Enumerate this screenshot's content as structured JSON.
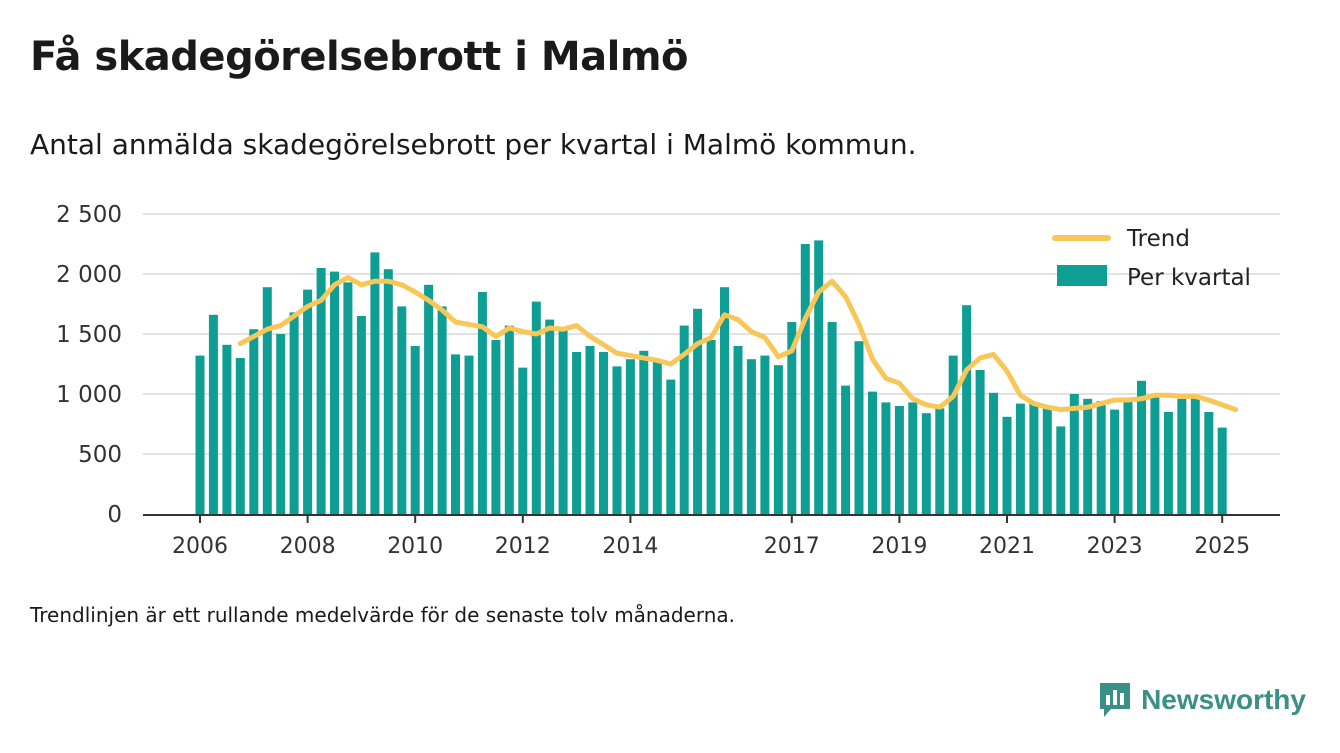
{
  "title": "Få skadegörelsebrott i Malmö",
  "subtitle": "Antal anmälda skadegörelsebrott per kvartal i Malmö kommun.",
  "note": "Trendlinjen är ett rullande medelvärde för de senaste tolv månaderna.",
  "brand": {
    "name": "Newsworthy",
    "icon": "newsworthy-logo-icon",
    "color": "#3a8f86"
  },
  "chart_data": {
    "type": "bar",
    "x_start_year": 2006,
    "quarters_per_year": 4,
    "ylim": [
      0,
      2500
    ],
    "y_ticks": [
      0,
      500,
      1000,
      1500,
      2000,
      2500
    ],
    "y_tick_labels": [
      "0",
      "500",
      "1 000",
      "1 500",
      "2 000",
      "2 500"
    ],
    "x_ticks": [
      2006,
      2008,
      2010,
      2012,
      2014,
      2017,
      2019,
      2021,
      2023,
      2025
    ],
    "x_tick_labels": [
      "2006",
      "2008",
      "2010",
      "2012",
      "2014",
      "2017",
      "2019",
      "2021",
      "2023",
      "2025"
    ],
    "grid": true,
    "legend_position": "top-right",
    "colors": {
      "bars": "#0f9e93",
      "trend": "#f8c758",
      "grid": "#d9d9d9",
      "axis": "#333333"
    },
    "series": [
      {
        "name": "Per kvartal",
        "kind": "bar",
        "values": [
          1320,
          1660,
          1410,
          1300,
          1540,
          1890,
          1500,
          1680,
          1870,
          2050,
          2020,
          1930,
          1650,
          2180,
          2040,
          1730,
          1400,
          1910,
          1730,
          1330,
          1320,
          1850,
          1450,
          1570,
          1220,
          1770,
          1620,
          1550,
          1350,
          1400,
          1350,
          1230,
          1290,
          1360,
          1290,
          1120,
          1570,
          1710,
          1450,
          1890,
          1400,
          1290,
          1320,
          1240,
          1600,
          2250,
          2280,
          1600,
          1070,
          1440,
          1020,
          930,
          900,
          930,
          840,
          880,
          1320,
          1740,
          1200,
          1010,
          810,
          920,
          920,
          880,
          730,
          1000,
          960,
          940,
          870,
          960,
          1110,
          990,
          850,
          960,
          970,
          850,
          720
        ]
      },
      {
        "name": "Trend",
        "kind": "line",
        "start_index": 3,
        "values": [
          1420,
          1480,
          1540,
          1570,
          1650,
          1730,
          1780,
          1910,
          1970,
          1910,
          1940,
          1940,
          1910,
          1850,
          1780,
          1700,
          1600,
          1580,
          1560,
          1480,
          1550,
          1520,
          1500,
          1550,
          1540,
          1570,
          1480,
          1410,
          1340,
          1320,
          1300,
          1280,
          1250,
          1330,
          1420,
          1470,
          1660,
          1620,
          1520,
          1470,
          1310,
          1360,
          1630,
          1850,
          1940,
          1810,
          1580,
          1290,
          1130,
          1090,
          960,
          910,
          890,
          980,
          1200,
          1300,
          1330,
          1190,
          990,
          920,
          890,
          870,
          880,
          890,
          920,
          950,
          950,
          960,
          990,
          990,
          980,
          980,
          950,
          910,
          870
        ]
      }
    ]
  }
}
